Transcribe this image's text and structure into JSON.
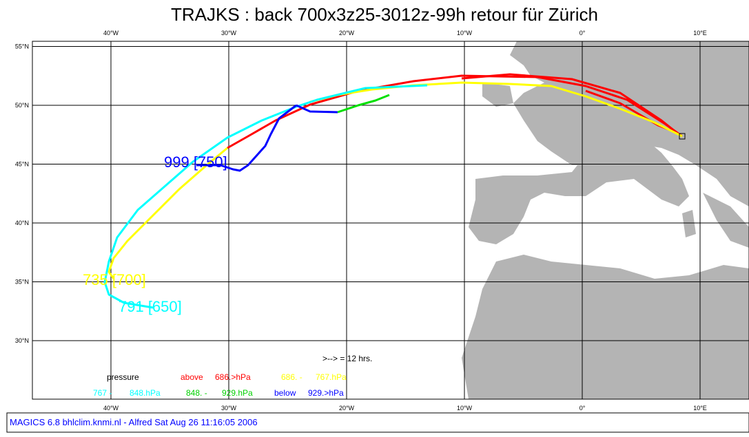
{
  "title": "TRAJKS : back 700x3z25-3012z-99h retour für Zürich",
  "lon_ticks": [
    {
      "value": -40,
      "label": "40°W"
    },
    {
      "value": -30,
      "label": "30°W"
    },
    {
      "value": -20,
      "label": "20°W"
    },
    {
      "value": -10,
      "label": "10°W"
    },
    {
      "value": 0,
      "label": "0°"
    },
    {
      "value": 10,
      "label": "10°E"
    }
  ],
  "lat_ticks": [
    {
      "value": 55,
      "label": "55°N"
    },
    {
      "value": 50,
      "label": "50°N"
    },
    {
      "value": 45,
      "label": "45°N"
    },
    {
      "value": 40,
      "label": "40°N"
    },
    {
      "value": 35,
      "label": "35°N"
    },
    {
      "value": 30,
      "label": "30°N"
    }
  ],
  "labels": {
    "traj1": "999 [750]",
    "traj2": "735 [700]",
    "traj3": "791 [650]",
    "arrow_note": ">--> = 12 hrs."
  },
  "legend": {
    "heading": "pressure",
    "rows": [
      [
        "above",
        "686.>hPa"
      ],
      [
        "686. -",
        "767.hPa"
      ],
      [
        "767 -",
        "848.hPa"
      ],
      [
        "848. -",
        "929.hPa"
      ],
      [
        "below",
        "929.>hPa"
      ]
    ]
  },
  "footer": "MAGICS 6.8 bhlclim.knmi.nl - Alfred Sat Aug 26 11:16:05 2006"
}
